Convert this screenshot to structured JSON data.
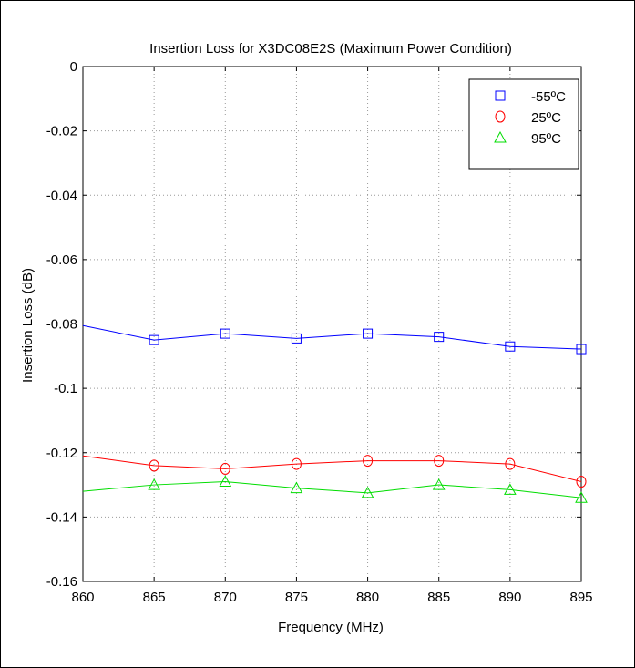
{
  "chart_data": {
    "type": "line",
    "title": "Insertion Loss for X3DC08E2S (Maximum Power Condition)",
    "xlabel": "Frequency (MHz)",
    "ylabel": "Insertion Loss (dB)",
    "xlim": [
      860,
      895
    ],
    "ylim": [
      -0.16,
      0
    ],
    "x_ticks": [
      "860",
      "865",
      "870",
      "875",
      "880",
      "885",
      "890",
      "895"
    ],
    "y_ticks": [
      "0",
      "-0.02",
      "-0.04",
      "-0.06",
      "-0.08",
      "-0.1",
      "-0.12",
      "-0.14",
      "-0.16"
    ],
    "grid": true,
    "legend_position": "top-right",
    "x": [
      860,
      865,
      870,
      875,
      880,
      885,
      890,
      895
    ],
    "series": [
      {
        "name": "-55ºC",
        "color": "#0000ff",
        "marker": "square",
        "values": [
          -0.0805,
          -0.085,
          -0.083,
          -0.0845,
          -0.083,
          -0.084,
          -0.087,
          -0.0878
        ]
      },
      {
        "name": "25ºC",
        "color": "#ff0000",
        "marker": "circle",
        "values": [
          -0.121,
          -0.124,
          -0.125,
          -0.1235,
          -0.1225,
          -0.1225,
          -0.1235,
          -0.129
        ]
      },
      {
        "name": "95ºC",
        "color": "#00dd00",
        "marker": "triangle",
        "values": [
          -0.132,
          -0.13,
          -0.129,
          -0.131,
          -0.1325,
          -0.13,
          -0.1315,
          -0.134
        ]
      }
    ]
  }
}
